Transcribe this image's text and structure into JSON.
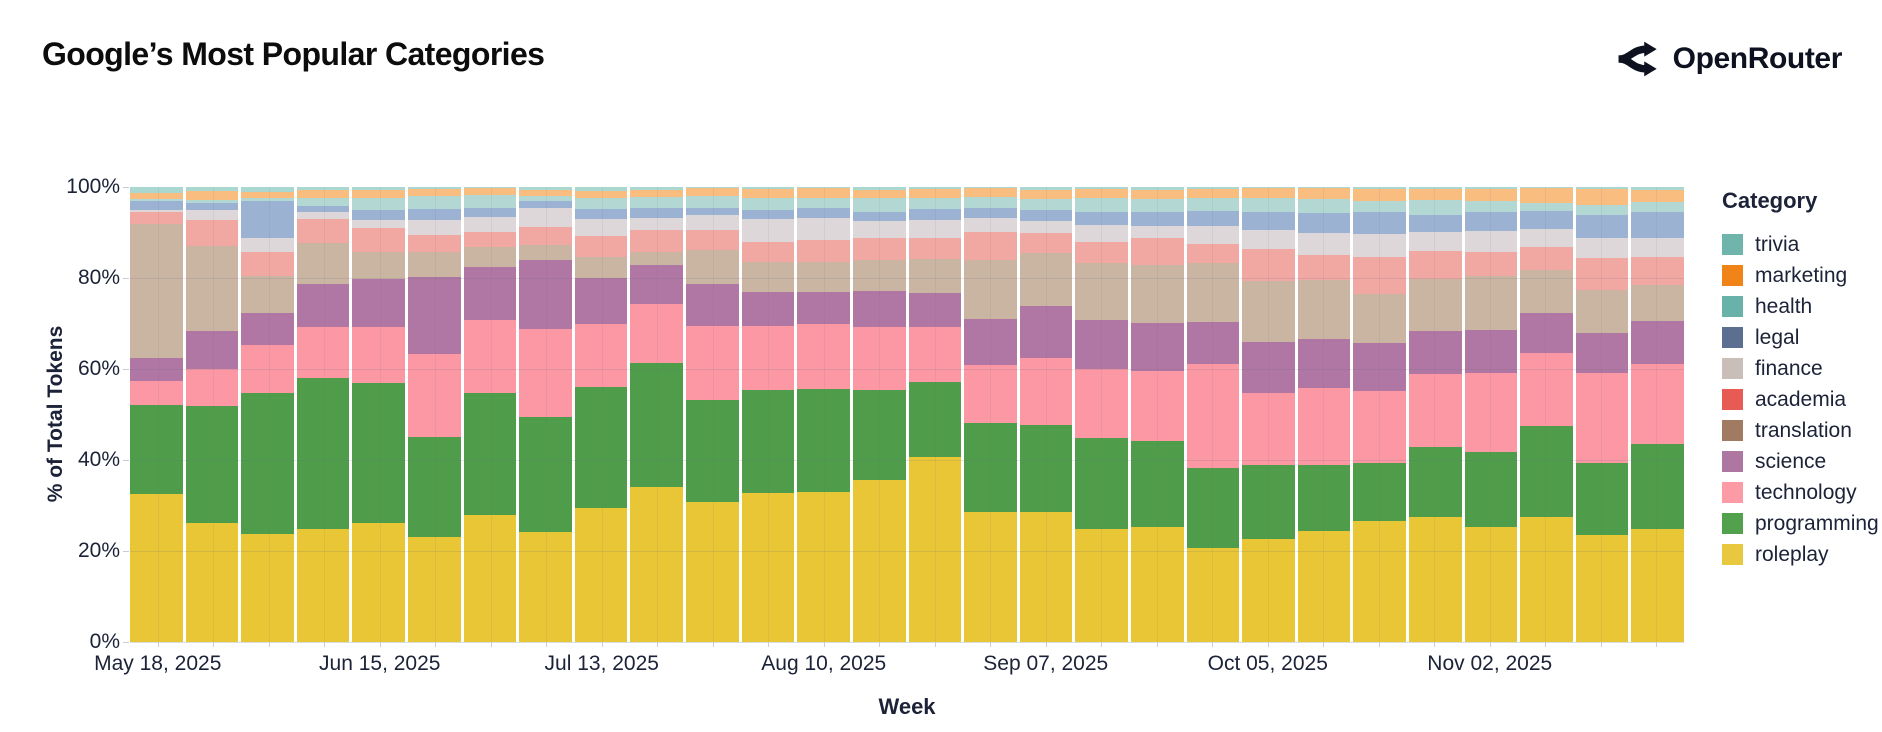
{
  "header": {
    "title": "Google’s Most Popular Categories",
    "brand": "OpenRouter"
  },
  "chart_data": {
    "type": "bar",
    "stacked": true,
    "title": "Google’s Most Popular Categories",
    "xlabel": "Week",
    "ylabel": "% of Total Tokens",
    "ylim": [
      0,
      100
    ],
    "grid": true,
    "legend_position": "right",
    "legend_title": "Category",
    "y_ticks": [
      {
        "value": 0,
        "label": "0%"
      },
      {
        "value": 20,
        "label": "20%"
      },
      {
        "value": 40,
        "label": "40%"
      },
      {
        "value": 60,
        "label": "60%"
      },
      {
        "value": 80,
        "label": "80%"
      },
      {
        "value": 100,
        "label": "100%"
      }
    ],
    "categories": [
      "May 18, 2025",
      "May 25, 2025",
      "Jun 01, 2025",
      "Jun 08, 2025",
      "Jun 15, 2025",
      "Jun 22, 2025",
      "Jun 29, 2025",
      "Jul 06, 2025",
      "Jul 13, 2025",
      "Jul 20, 2025",
      "Jul 27, 2025",
      "Aug 03, 2025",
      "Aug 10, 2025",
      "Aug 17, 2025",
      "Aug 24, 2025",
      "Aug 31, 2025",
      "Sep 07, 2025",
      "Sep 14, 2025",
      "Sep 21, 2025",
      "Sep 28, 2025",
      "Oct 05, 2025",
      "Oct 12, 2025",
      "Oct 19, 2025",
      "Oct 26, 2025",
      "Nov 02, 2025",
      "Nov 09, 2025",
      "Nov 16, 2025",
      "Nov 23, 2025"
    ],
    "x_axis_labels": [
      {
        "index": 0,
        "label": "May 18, 2025"
      },
      {
        "index": 4,
        "label": "Jun 15, 2025"
      },
      {
        "index": 8,
        "label": "Jul 13, 2025"
      },
      {
        "index": 12,
        "label": "Aug 10, 2025"
      },
      {
        "index": 16,
        "label": "Sep 07, 2025"
      },
      {
        "index": 20,
        "label": "Oct 05, 2025"
      },
      {
        "index": 24,
        "label": "Nov 02, 2025"
      }
    ],
    "stack_order_bottom_to_top": [
      "roleplay",
      "programming",
      "technology",
      "science",
      "translation",
      "academia",
      "finance",
      "legal",
      "health",
      "marketing",
      "trivia"
    ],
    "series": [
      {
        "name": "trivia",
        "legend_color": "#6fb5ac",
        "bar_color": "#abd7d1",
        "bar_pattern_color": "rgba(42,118,110,0.40)",
        "values": [
          1.2,
          0.9,
          1.0,
          0.7,
          0.7,
          0.5,
          0.3,
          0.7,
          0.8,
          0.7,
          0.3,
          0.5,
          0.3,
          0.7,
          0.5,
          0.3,
          0.7,
          0.5,
          0.7,
          0.5,
          0.3,
          0.3,
          0.5,
          0.5,
          0.5,
          0.3,
          0.5,
          0.7
        ]
      },
      {
        "name": "marketing",
        "legend_color": "#f08418",
        "bar_color": "#f9bd80",
        "values": [
          1.5,
          1.9,
          1.5,
          1.6,
          1.8,
          1.5,
          1.5,
          1.3,
          1.5,
          1.4,
          1.7,
          2.0,
          2.2,
          1.8,
          2.0,
          1.8,
          2.0,
          2.0,
          2.0,
          2.0,
          2.2,
          2.4,
          2.5,
          2.4,
          2.5,
          3.1,
          3.5,
          2.5
        ]
      },
      {
        "name": "health",
        "legend_color": "#68b2aa",
        "bar_color": "#b3d8d3",
        "values": [
          0.3,
          0.8,
          0.5,
          1.9,
          2.6,
          2.9,
          2.9,
          1.0,
          2.6,
          2.6,
          2.5,
          2.6,
          2.2,
          2.9,
          2.4,
          2.6,
          2.4,
          2.9,
          2.7,
          2.7,
          2.9,
          2.9,
          2.4,
          3.3,
          2.4,
          1.8,
          2.2,
          2.2
        ]
      },
      {
        "name": "legal",
        "legend_color": "#5d6f91",
        "legend_pattern_color": "rgba(255,255,255,0.55)",
        "bar_color": "#9cb2d2",
        "bar_pattern_color": "rgba(255,255,255,0.45)",
        "values": [
          2.1,
          1.5,
          8.3,
          1.2,
          2.2,
          2.4,
          1.8,
          1.7,
          2.2,
          2.0,
          1.7,
          2.0,
          2.0,
          2.0,
          2.4,
          2.0,
          2.3,
          3.0,
          3.2,
          3.4,
          4.1,
          4.4,
          4.9,
          3.6,
          4.2,
          4.1,
          5.1,
          5.5
        ]
      },
      {
        "name": "finance",
        "legend_color": "#c9bfb8",
        "legend_pattern_color": "rgba(255,255,255,0.70)",
        "bar_color": "#ded7d9",
        "bar_pattern_color": "rgba(115,128,152,0.30)",
        "values": [
          0.5,
          2.2,
          3.0,
          1.7,
          1.8,
          3.2,
          3.3,
          4.0,
          3.7,
          2.8,
          3.3,
          4.9,
          4.9,
          3.7,
          3.8,
          3.1,
          2.6,
          3.6,
          2.5,
          3.9,
          4.2,
          4.9,
          5.0,
          4.2,
          4.6,
          3.8,
          4.4,
          4.0
        ]
      },
      {
        "name": "academia",
        "legend_color": "#e85b55",
        "bar_color": "#f1a8a3",
        "values": [
          2.6,
          5.6,
          5.3,
          5.3,
          5.1,
          3.7,
          3.3,
          4.0,
          4.5,
          4.7,
          4.3,
          4.4,
          4.8,
          4.9,
          4.8,
          6.2,
          4.4,
          4.6,
          6.0,
          4.3,
          6.9,
          5.5,
          8.1,
          6.1,
          5.4,
          5.1,
          6.9,
          6.0
        ]
      },
      {
        "name": "translation",
        "legend_color": "#a07b61",
        "bar_color": "#cab5a3",
        "values": [
          29.4,
          18.7,
          8.1,
          8.8,
          5.9,
          5.5,
          4.4,
          3.3,
          4.8,
          2.9,
          7.4,
          6.6,
          6.6,
          6.8,
          7.3,
          12.9,
          11.8,
          12.6,
          12.7,
          12.8,
          13.4,
          13.1,
          10.8,
          11.5,
          11.8,
          9.4,
          9.4,
          7.7
        ]
      },
      {
        "name": "science",
        "legend_color": "#ad77a2",
        "bar_color": "#b077a4",
        "values": [
          5.1,
          8.5,
          7.0,
          9.5,
          10.6,
          16.9,
          11.7,
          15.1,
          9.9,
          8.5,
          9.3,
          7.5,
          7.1,
          7.9,
          7.6,
          10.2,
          11.4,
          10.7,
          10.6,
          9.3,
          11.3,
          10.7,
          10.6,
          9.5,
          9.4,
          8.8,
          8.8,
          9.2
        ]
      },
      {
        "name": "technology",
        "legend_color": "#fc9ba6",
        "bar_color": "#fb98a4",
        "values": [
          5.3,
          8.2,
          10.6,
          11.3,
          12.4,
          18.3,
          16.1,
          19.4,
          13.9,
          13.1,
          16.3,
          14.1,
          14.4,
          13.8,
          12.0,
          12.7,
          14.7,
          15.3,
          15.4,
          22.9,
          15.8,
          16.9,
          15.8,
          16.0,
          17.4,
          16.1,
          19.9,
          17.0
        ]
      },
      {
        "name": "programming",
        "legend_color": "#52a14c",
        "bar_color": "#4f9d4b",
        "values": [
          19.6,
          25.7,
          31.0,
          33.2,
          30.8,
          22.1,
          26.8,
          25.3,
          26.7,
          27.2,
          22.4,
          22.7,
          22.5,
          19.9,
          16.5,
          19.6,
          19.1,
          20.0,
          19.0,
          17.6,
          16.3,
          14.4,
          12.7,
          15.5,
          16.6,
          20.0,
          15.8,
          18.2
        ]
      },
      {
        "name": "roleplay",
        "legend_color": "#e7c83f",
        "bar_color": "#e9c636",
        "values": [
          32.7,
          26.2,
          23.7,
          24.8,
          26.1,
          23.0,
          27.9,
          24.2,
          29.4,
          34.1,
          30.8,
          32.7,
          33.0,
          35.6,
          40.7,
          28.6,
          28.6,
          24.8,
          25.2,
          20.6,
          22.6,
          24.5,
          26.7,
          27.4,
          25.2,
          27.5,
          23.5,
          24.0
        ]
      }
    ]
  }
}
